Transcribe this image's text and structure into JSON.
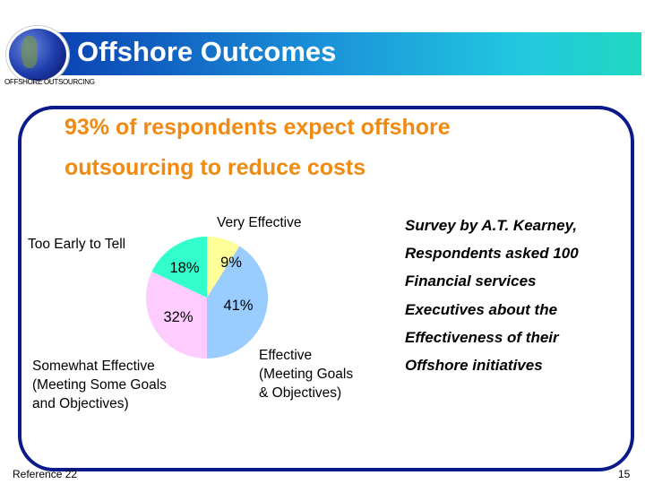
{
  "header": {
    "title": "Offshore Outcomes",
    "subtitle": "OFFSHORE OUTSOURCING",
    "logo": "globe-icon"
  },
  "headline": [
    "93% of respondents expect offshore",
    "outsourcing to reduce costs"
  ],
  "chart_data": {
    "type": "pie",
    "start": "top",
    "direction": "clockwise",
    "slices": [
      {
        "label": "Very Effective",
        "value": 9,
        "data_label": "9%",
        "color": "#ffff99"
      },
      {
        "label": "Effective (Meeting Goals & Objectives)",
        "value": 41,
        "data_label": "41%",
        "color": "#99ccff"
      },
      {
        "label": "Somewhat Effective (Meeting Some Goals and Objectives)",
        "value": 32,
        "data_label": "32%",
        "color": "#ffccff"
      },
      {
        "label": "Too Early to Tell",
        "value": 18,
        "data_label": "18%",
        "color": "#33ffcc"
      }
    ],
    "category_labels": {
      "very": "Very Effective",
      "effective": [
        "Effective",
        "(Meeting Goals",
        "& Objectives)"
      ],
      "somewhat": [
        "Somewhat Effective",
        "(Meeting Some Goals",
        "and Objectives)"
      ],
      "early": "Too Early to Tell"
    }
  },
  "survey": [
    "Survey by A.T. Kearney,",
    "Respondents asked 100",
    "Financial services",
    "Executives  about the",
    "Effectiveness of their",
    "Offshore initiatives"
  ],
  "footer": {
    "reference": "Reference 22",
    "page": "15"
  }
}
